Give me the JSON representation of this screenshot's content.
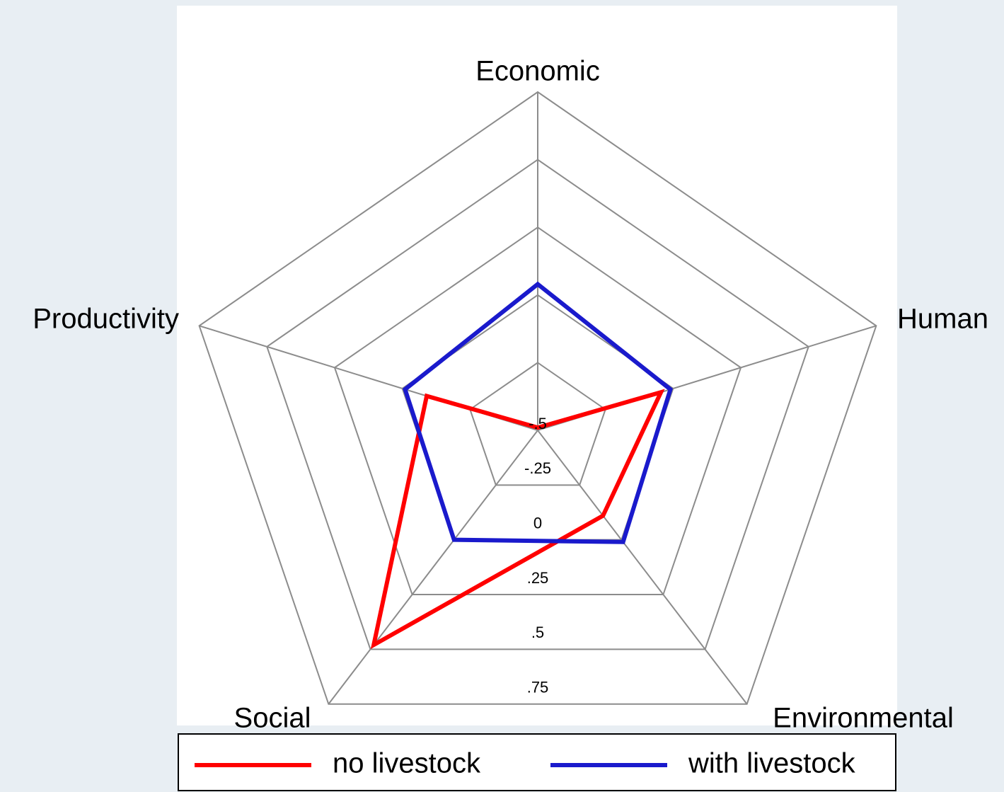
{
  "chart_data": {
    "type": "radar",
    "categories": [
      "Economic",
      "Human",
      "Environmental",
      "Social",
      "Productivity"
    ],
    "series": [
      {
        "name": "no livestock",
        "color": "#ff0000",
        "values": [
          -0.49,
          -0.045,
          -0.11,
          0.48,
          -0.09
        ]
      },
      {
        "name": "with livestock",
        "color": "#1a1acc",
        "values": [
          0.04,
          -0.01,
          0.01,
          0.0,
          -0.01
        ]
      }
    ],
    "ylim": [
      -0.5,
      0.75
    ],
    "yticks": [
      {
        "value": -0.5,
        "label": "-.5"
      },
      {
        "value": -0.25,
        "label": "-.25"
      },
      0,
      {
        "value": 0.25,
        "label": ".25"
      },
      {
        "value": 0.5,
        "label": ".5"
      },
      {
        "value": 0.75,
        "label": ".75"
      }
    ],
    "grid": true,
    "legend": "bottom"
  }
}
